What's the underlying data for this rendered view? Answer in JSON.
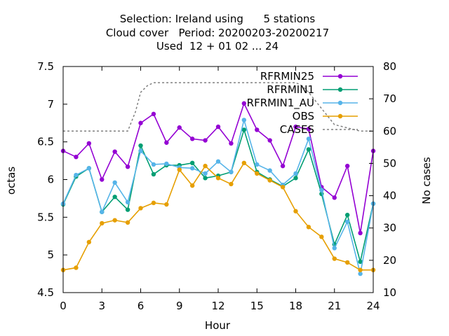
{
  "chart_data": {
    "type": "line",
    "title_lines": [
      "Selection: Ireland using      5 stations",
      "Cloud cover   Period: 20200203-20200217",
      "Used  12 + 01 02 ... 24"
    ],
    "xlabel": "Hour",
    "ylabel": "octas",
    "y2label": "No cases",
    "xlim": [
      0,
      24
    ],
    "ylim": [
      4.5,
      7.5
    ],
    "y2lim": [
      10,
      80
    ],
    "xticks": [
      "0",
      "3",
      "6",
      "9",
      "12",
      "15",
      "18",
      "21",
      "24"
    ],
    "yticks": [
      "4.5",
      "5",
      "5.5",
      "6",
      "6.5",
      "7",
      "7.5"
    ],
    "y2ticks": [
      "10",
      "20",
      "30",
      "40",
      "50",
      "60",
      "70",
      "80"
    ],
    "grid": false,
    "legend_position": "top-right",
    "x": [
      0,
      1,
      2,
      3,
      4,
      5,
      6,
      7,
      8,
      9,
      10,
      11,
      12,
      13,
      14,
      15,
      16,
      17,
      18,
      19,
      20,
      21,
      22,
      23,
      24
    ],
    "series": [
      {
        "name": "RFRMIN25",
        "color": "#9400d3",
        "values": [
          6.38,
          6.3,
          6.48,
          6.0,
          6.37,
          6.17,
          6.75,
          6.87,
          6.49,
          6.69,
          6.54,
          6.52,
          6.7,
          6.48,
          7.01,
          6.66,
          6.52,
          6.18,
          6.7,
          6.67,
          5.9,
          5.76,
          6.18,
          5.29,
          6.38
        ]
      },
      {
        "name": "RFRMIN1",
        "color": "#009e73",
        "values": [
          5.67,
          6.04,
          6.15,
          5.57,
          5.77,
          5.6,
          6.45,
          6.07,
          6.19,
          6.19,
          6.22,
          6.02,
          6.05,
          6.1,
          6.66,
          6.1,
          6.0,
          5.91,
          6.02,
          6.4,
          5.81,
          5.14,
          5.53,
          4.91,
          5.68
        ]
      },
      {
        "name": "RFRMIN1_AU",
        "color": "#56b4e9",
        "values": [
          5.68,
          6.06,
          6.15,
          5.57,
          5.96,
          5.7,
          6.38,
          6.2,
          6.21,
          6.16,
          6.15,
          6.08,
          6.24,
          6.1,
          6.79,
          6.2,
          6.12,
          5.93,
          6.08,
          6.54,
          5.86,
          5.09,
          5.44,
          4.75,
          5.68
        ]
      },
      {
        "name": "OBS",
        "color": "#e69f00",
        "values": [
          4.8,
          4.83,
          5.17,
          5.42,
          5.46,
          5.43,
          5.62,
          5.69,
          5.67,
          6.13,
          5.92,
          6.18,
          6.02,
          5.94,
          6.22,
          6.08,
          5.99,
          5.9,
          5.58,
          5.37,
          5.24,
          4.95,
          4.9,
          4.8,
          4.8
        ]
      }
    ],
    "cases": {
      "name": "CASES",
      "color": "#808080",
      "axis": "y2",
      "x": [
        0,
        5,
        5.6,
        6,
        6.5,
        7,
        10,
        15,
        18,
        18.5,
        19,
        20,
        21,
        22,
        23,
        24
      ],
      "values": [
        60,
        60,
        66,
        72,
        74,
        75,
        75,
        75,
        75,
        74,
        72,
        67,
        62,
        61,
        60,
        60
      ]
    }
  }
}
